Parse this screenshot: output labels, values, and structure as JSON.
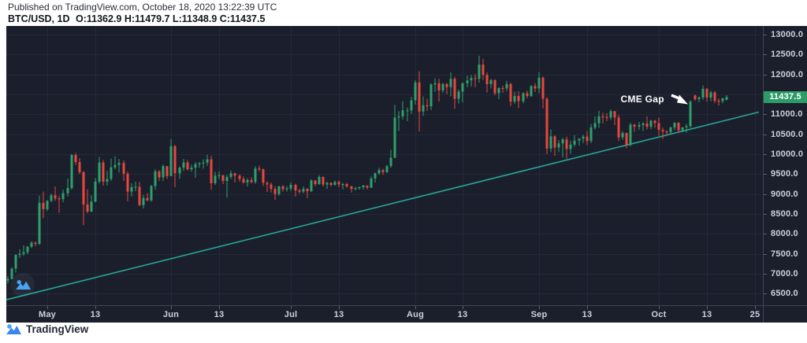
{
  "header": {
    "published_line": "Published on TradingView.com, October 18, 2020 13:22:39 UTC",
    "symbol_interval": "BTC/USD, 1D",
    "ohlc_display": "O:11362.9 H:11479.7 L:11348.9 C:11437.5"
  },
  "chart_data": {
    "type": "candlestick",
    "symbol": "BTC/USD",
    "interval": "1D",
    "start_date": "2020-04-21",
    "end_date": "2020-10-18",
    "current_ohlc": {
      "open": 11362.9,
      "high": 11479.7,
      "low": 11348.9,
      "close": 11437.5
    },
    "last_price_label": "11437.5",
    "y_axis": {
      "min": 6500,
      "max": 13000,
      "step": 500,
      "labels": [
        "13000.0",
        "12500.0",
        "12000.0",
        "11000.0",
        "10500.0",
        "10000.0",
        "9500.0",
        "9000.0",
        "8500.0",
        "8000.0",
        "7500.0",
        "7000.0",
        "6500.0"
      ]
    },
    "x_ticks": [
      {
        "label": "May",
        "day": 10
      },
      {
        "label": "13",
        "day": 22
      },
      {
        "label": "Jun",
        "day": 41
      },
      {
        "label": "13",
        "day": 53
      },
      {
        "label": "Jul",
        "day": 71
      },
      {
        "label": "13",
        "day": 83
      },
      {
        "label": "Aug",
        "day": 102
      },
      {
        "label": "13",
        "day": 114
      },
      {
        "label": "Sep",
        "day": 133
      },
      {
        "label": "13",
        "day": 145
      },
      {
        "label": "Oct",
        "day": 163
      },
      {
        "label": "13",
        "day": 175
      },
      {
        "label": "25",
        "day": 187
      }
    ],
    "trendline": {
      "from": {
        "day": -1,
        "price": 6330
      },
      "to": {
        "day": 188,
        "price": 11055
      },
      "color": "#26A69A"
    },
    "annotation": {
      "text": "CME Gap",
      "day": 170.3,
      "price": 11250
    },
    "colors": {
      "background": "#1B1F2C",
      "grid": "#242938",
      "border": "#3F4554",
      "axis_text": "#CDD1DC",
      "up": "#2FA06C",
      "down": "#E8473E",
      "badge": "#2B9C68",
      "trendline": "#26A69A",
      "logo_blue": "#4BA3F5",
      "annotation_text": "#FFFFFF"
    },
    "candles": [
      [
        6830,
        6940,
        6750,
        6870
      ],
      [
        6870,
        7160,
        6860,
        7130
      ],
      [
        7130,
        7490,
        7030,
        7470
      ],
      [
        7470,
        7610,
        7400,
        7500
      ],
      [
        7500,
        7710,
        7450,
        7540
      ],
      [
        7540,
        7690,
        7490,
        7680
      ],
      [
        7680,
        7810,
        7640,
        7780
      ],
      [
        7780,
        7800,
        7690,
        7750
      ],
      [
        7750,
        8960,
        7720,
        8780
      ],
      [
        8780,
        9060,
        8390,
        8620
      ],
      [
        8620,
        8850,
        8580,
        8830
      ],
      [
        8830,
        9010,
        8790,
        8970
      ],
      [
        8970,
        9190,
        8830,
        8890
      ],
      [
        8890,
        8950,
        8530,
        8870
      ],
      [
        8870,
        9110,
        8790,
        9020
      ],
      [
        9020,
        9390,
        8940,
        9150
      ],
      [
        9150,
        10010,
        9110,
        9980
      ],
      [
        9980,
        10030,
        9730,
        9800
      ],
      [
        9800,
        9900,
        9500,
        9550
      ],
      [
        9550,
        9570,
        8220,
        8740
      ],
      [
        8740,
        9120,
        8520,
        8560
      ],
      [
        8560,
        8970,
        8550,
        8810
      ],
      [
        8810,
        9400,
        8790,
        9310
      ],
      [
        9310,
        9930,
        9260,
        9790
      ],
      [
        9790,
        9850,
        9210,
        9310
      ],
      [
        9310,
        9580,
        9220,
        9380
      ],
      [
        9380,
        9890,
        9330,
        9670
      ],
      [
        9670,
        9950,
        9620,
        9730
      ],
      [
        9730,
        9880,
        9540,
        9780
      ],
      [
        9780,
        9840,
        9330,
        9510
      ],
      [
        9510,
        9560,
        8820,
        9060
      ],
      [
        9060,
        9270,
        8940,
        9170
      ],
      [
        9170,
        9310,
        9070,
        9180
      ],
      [
        9180,
        9300,
        8700,
        8720
      ],
      [
        8720,
        8980,
        8640,
        8900
      ],
      [
        8900,
        9020,
        8820,
        8840
      ],
      [
        8840,
        9230,
        8810,
        9200
      ],
      [
        9200,
        9620,
        9110,
        9570
      ],
      [
        9570,
        9600,
        9330,
        9420
      ],
      [
        9420,
        9740,
        9330,
        9700
      ],
      [
        9700,
        9700,
        9380,
        9450
      ],
      [
        9450,
        10380,
        9450,
        10200
      ],
      [
        10200,
        10230,
        9170,
        9520
      ],
      [
        9520,
        9690,
        9380,
        9660
      ],
      [
        9660,
        9880,
        9580,
        9790
      ],
      [
        9790,
        9850,
        9590,
        9620
      ],
      [
        9620,
        9740,
        9560,
        9660
      ],
      [
        9660,
        9800,
        9410,
        9750
      ],
      [
        9750,
        9800,
        9660,
        9770
      ],
      [
        9770,
        9870,
        9640,
        9790
      ],
      [
        9790,
        9990,
        9710,
        9870
      ],
      [
        9870,
        9960,
        9110,
        9270
      ],
      [
        9270,
        9560,
        9230,
        9460
      ],
      [
        9460,
        9570,
        9370,
        9470
      ],
      [
        9470,
        9480,
        9250,
        9330
      ],
      [
        9330,
        9480,
        8910,
        9430
      ],
      [
        9430,
        9590,
        9380,
        9520
      ],
      [
        9520,
        9530,
        9290,
        9460
      ],
      [
        9460,
        9490,
        9310,
        9380
      ],
      [
        9380,
        9440,
        9260,
        9290
      ],
      [
        9290,
        9400,
        9190,
        9350
      ],
      [
        9350,
        9420,
        9270,
        9300
      ],
      [
        9300,
        9700,
        9260,
        9640
      ],
      [
        9640,
        9710,
        9570,
        9620
      ],
      [
        9620,
        9640,
        9200,
        9280
      ],
      [
        9280,
        9320,
        9050,
        9240
      ],
      [
        9240,
        9290,
        9040,
        9130
      ],
      [
        9130,
        9190,
        8850,
        9000
      ],
      [
        9000,
        9210,
        8960,
        9190
      ],
      [
        9190,
        9230,
        9060,
        9120
      ],
      [
        9120,
        9200,
        9060,
        9140
      ],
      [
        9140,
        9290,
        9080,
        9230
      ],
      [
        9230,
        9260,
        8940,
        9090
      ],
      [
        9090,
        9130,
        9010,
        9060
      ],
      [
        9060,
        9190,
        9020,
        9130
      ],
      [
        9130,
        9150,
        8900,
        9070
      ],
      [
        9070,
        9370,
        9050,
        9340
      ],
      [
        9340,
        9350,
        9200,
        9250
      ],
      [
        9250,
        9470,
        9230,
        9430
      ],
      [
        9430,
        9440,
        9190,
        9240
      ],
      [
        9240,
        9310,
        9130,
        9280
      ],
      [
        9280,
        9300,
        9190,
        9230
      ],
      [
        9230,
        9340,
        9210,
        9300
      ],
      [
        9300,
        9340,
        9170,
        9240
      ],
      [
        9240,
        9280,
        9120,
        9250
      ],
      [
        9250,
        9280,
        9160,
        9190
      ],
      [
        9190,
        9210,
        9040,
        9130
      ],
      [
        9130,
        9180,
        9090,
        9150
      ],
      [
        9150,
        9190,
        9110,
        9170
      ],
      [
        9170,
        9230,
        9110,
        9210
      ],
      [
        9210,
        9220,
        9120,
        9160
      ],
      [
        9160,
        9440,
        9150,
        9390
      ],
      [
        9390,
        9540,
        9290,
        9520
      ],
      [
        9520,
        9660,
        9480,
        9600
      ],
      [
        9600,
        9630,
        9480,
        9550
      ],
      [
        9550,
        9730,
        9530,
        9700
      ],
      [
        9700,
        10110,
        9660,
        9910
      ],
      [
        9910,
        11240,
        9910,
        10920
      ],
      [
        10920,
        11080,
        10580,
        10950
      ],
      [
        10950,
        11330,
        10870,
        11100
      ],
      [
        11100,
        11170,
        10830,
        11100
      ],
      [
        11100,
        11440,
        11010,
        11350
      ],
      [
        11350,
        11860,
        11240,
        11800
      ],
      [
        11800,
        12080,
        10570,
        11070
      ],
      [
        11070,
        11450,
        10960,
        11230
      ],
      [
        11230,
        11390,
        11090,
        11200
      ],
      [
        11200,
        11780,
        11110,
        11750
      ],
      [
        11750,
        11900,
        11560,
        11780
      ],
      [
        11780,
        11890,
        11320,
        11600
      ],
      [
        11600,
        11790,
        11540,
        11760
      ],
      [
        11760,
        11780,
        11500,
        11680
      ],
      [
        11680,
        12050,
        11450,
        11890
      ],
      [
        11890,
        11940,
        11140,
        11390
      ],
      [
        11390,
        11620,
        11270,
        11570
      ],
      [
        11570,
        11800,
        11300,
        11780
      ],
      [
        11780,
        11970,
        11680,
        11850
      ],
      [
        11850,
        11990,
        11700,
        11910
      ],
      [
        11910,
        12010,
        11680,
        11890
      ],
      [
        11890,
        12470,
        11790,
        12250
      ],
      [
        12250,
        12390,
        11860,
        11990
      ],
      [
        11990,
        12050,
        11550,
        11760
      ],
      [
        11760,
        11890,
        11650,
        11860
      ],
      [
        11860,
        11880,
        11480,
        11530
      ],
      [
        11530,
        11680,
        11380,
        11660
      ],
      [
        11660,
        11720,
        11540,
        11650
      ],
      [
        11650,
        11840,
        11580,
        11760
      ],
      [
        11760,
        11790,
        11210,
        11320
      ],
      [
        11320,
        11570,
        11260,
        11460
      ],
      [
        11460,
        11580,
        11160,
        11330
      ],
      [
        11330,
        11550,
        11280,
        11530
      ],
      [
        11530,
        11590,
        11400,
        11460
      ],
      [
        11460,
        11730,
        11440,
        11710
      ],
      [
        11710,
        11780,
        11560,
        11650
      ],
      [
        11650,
        12060,
        11530,
        11920
      ],
      [
        11920,
        11950,
        11150,
        11390
      ],
      [
        11390,
        11430,
        10000,
        10140
      ],
      [
        10140,
        10620,
        10050,
        10450
      ],
      [
        10450,
        10470,
        9960,
        10170
      ],
      [
        10170,
        10350,
        10050,
        10270
      ],
      [
        10270,
        10410,
        9920,
        10370
      ],
      [
        10370,
        10440,
        9880,
        10130
      ],
      [
        10130,
        10340,
        10010,
        10240
      ],
      [
        10240,
        10480,
        10190,
        10340
      ],
      [
        10340,
        10400,
        10210,
        10390
      ],
      [
        10390,
        10490,
        10280,
        10440
      ],
      [
        10440,
        10580,
        10230,
        10330
      ],
      [
        10330,
        10760,
        10280,
        10670
      ],
      [
        10670,
        10950,
        10620,
        10780
      ],
      [
        10780,
        11090,
        10660,
        10950
      ],
      [
        10950,
        11040,
        10770,
        10930
      ],
      [
        10930,
        11030,
        10830,
        10920
      ],
      [
        10920,
        11120,
        10860,
        11080
      ],
      [
        11080,
        11080,
        10730,
        10920
      ],
      [
        10920,
        10990,
        10330,
        10420
      ],
      [
        10420,
        10580,
        10360,
        10530
      ],
      [
        10530,
        10540,
        10150,
        10230
      ],
      [
        10230,
        10790,
        10200,
        10740
      ],
      [
        10740,
        10760,
        10560,
        10690
      ],
      [
        10690,
        10810,
        10610,
        10730
      ],
      [
        10730,
        10810,
        10580,
        10770
      ],
      [
        10770,
        10950,
        10620,
        10690
      ],
      [
        10690,
        10860,
        10630,
        10840
      ],
      [
        10840,
        10860,
        10660,
        10780
      ],
      [
        10780,
        10920,
        10460,
        10610
      ],
      [
        10610,
        10670,
        10380,
        10570
      ],
      [
        10570,
        10600,
        10490,
        10550
      ],
      [
        10550,
        10690,
        10520,
        10670
      ],
      [
        10670,
        10800,
        10600,
        10790
      ],
      [
        10790,
        10800,
        10530,
        10600
      ],
      [
        10600,
        10680,
        10550,
        10670
      ],
      [
        10670,
        10760,
        10540,
        10700
      ],
      [
        10700,
        11350,
        10660,
        11320
      ],
      [
        11470,
        11500,
        11340,
        11380
      ],
      [
        11380,
        11450,
        11300,
        11420
      ],
      [
        11420,
        11725,
        11360,
        11640
      ],
      [
        11640,
        11660,
        11320,
        11420
      ],
      [
        11420,
        11590,
        11330,
        11550
      ],
      [
        11550,
        11580,
        11280,
        11340
      ],
      [
        11340,
        11400,
        11220,
        11330
      ],
      [
        11330,
        11420,
        11280,
        11400
      ],
      [
        11362.9,
        11479.7,
        11348.9,
        11437.5
      ]
    ]
  },
  "watermark": {
    "icon": "tradingview-logo"
  },
  "footer": {
    "brand": "TradingView"
  }
}
